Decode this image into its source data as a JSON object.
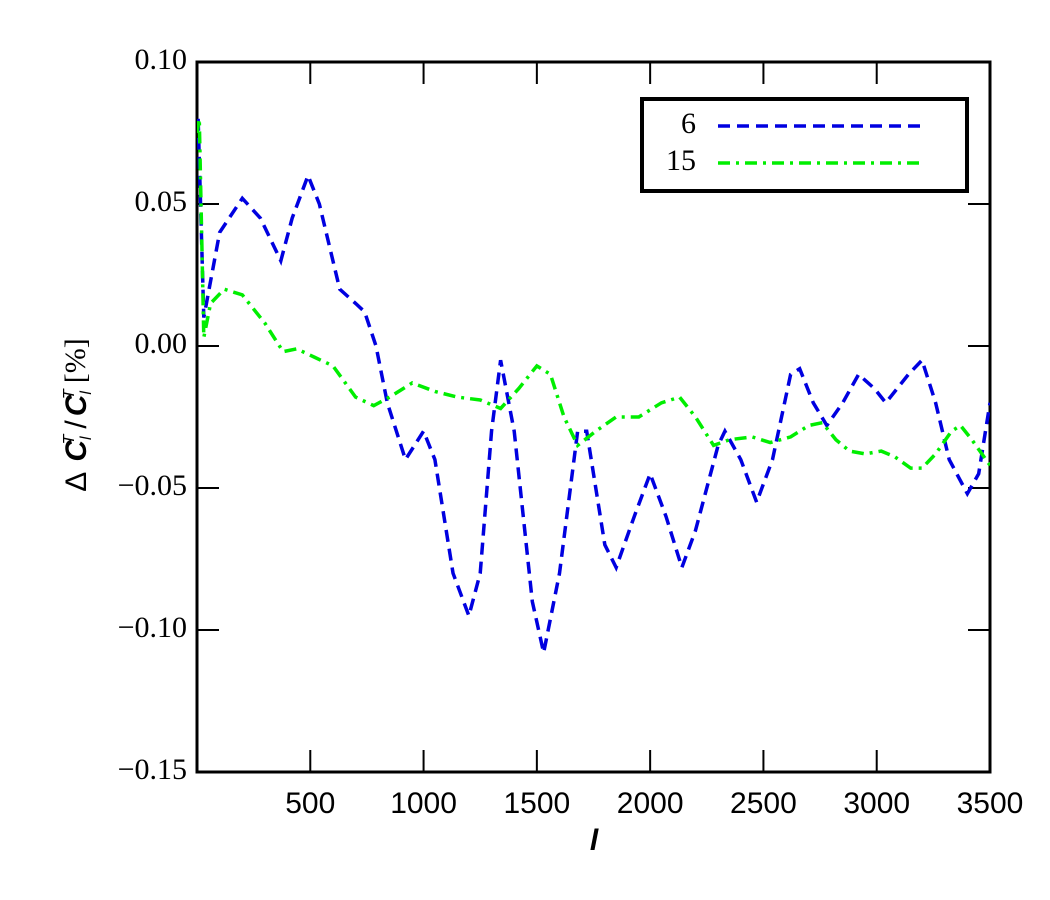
{
  "chart_data": {
    "type": "line",
    "xlabel": "l",
    "ylabel_parts": [
      "Δ",
      "C",
      "l",
      "T",
      "/",
      "C",
      "l",
      "T",
      "[%]"
    ],
    "xlim": [
      0,
      3500
    ],
    "ylim": [
      -0.15,
      0.1
    ],
    "xticks": [
      500,
      1000,
      1500,
      2000,
      2500,
      3000,
      3500
    ],
    "yticks": [
      {
        "value": -0.15,
        "label": "−0.15"
      },
      {
        "value": -0.1,
        "label": "−0.10"
      },
      {
        "value": -0.05,
        "label": "−0.05"
      },
      {
        "value": 0,
        "label": "0.00"
      },
      {
        "value": 0.05,
        "label": "0.05"
      },
      {
        "value": 0.1,
        "label": "0.10"
      }
    ],
    "legend": "upper right",
    "series": [
      {
        "name": "6",
        "color": "#0000e0",
        "dash": "dashed",
        "x": [
          5,
          30,
          100,
          200,
          280,
          370,
          420,
          490,
          540,
          630,
          700,
          740,
          790,
          840,
          920,
          1000,
          1050,
          1130,
          1200,
          1250,
          1300,
          1340,
          1400,
          1480,
          1530,
          1600,
          1680,
          1720,
          1800,
          1850,
          1930,
          2000,
          2070,
          2140,
          2200,
          2300,
          2330,
          2400,
          2470,
          2540,
          2620,
          2660,
          2720,
          2780,
          2850,
          2920,
          2990,
          3040,
          3140,
          3200,
          3260,
          3320,
          3400,
          3450,
          3500
        ],
        "values": [
          0.08,
          0.01,
          0.04,
          0.052,
          0.045,
          0.03,
          0.045,
          0.06,
          0.05,
          0.02,
          0.015,
          0.012,
          0.0,
          -0.02,
          -0.04,
          -0.03,
          -0.04,
          -0.08,
          -0.095,
          -0.08,
          -0.03,
          -0.005,
          -0.03,
          -0.09,
          -0.108,
          -0.08,
          -0.03,
          -0.03,
          -0.07,
          -0.078,
          -0.06,
          -0.045,
          -0.06,
          -0.078,
          -0.065,
          -0.035,
          -0.03,
          -0.04,
          -0.055,
          -0.04,
          -0.01,
          -0.008,
          -0.02,
          -0.028,
          -0.02,
          -0.01,
          -0.015,
          -0.02,
          -0.01,
          -0.005,
          -0.02,
          -0.04,
          -0.052,
          -0.045,
          -0.02
        ]
      },
      {
        "name": "15",
        "color": "#00ee00",
        "dash": "dashdot",
        "x": [
          0,
          10,
          30,
          60,
          120,
          200,
          300,
          380,
          440,
          520,
          600,
          700,
          780,
          850,
          950,
          1050,
          1150,
          1250,
          1340,
          1420,
          1500,
          1560,
          1620,
          1680,
          1760,
          1850,
          1950,
          2050,
          2130,
          2200,
          2280,
          2350,
          2450,
          2530,
          2620,
          2700,
          2760,
          2820,
          2880,
          2950,
          3020,
          3080,
          3150,
          3200,
          3260,
          3330,
          3370,
          3420,
          3500
        ],
        "values": [
          0.075,
          0.08,
          0.003,
          0.015,
          0.02,
          0.018,
          0.008,
          -0.002,
          -0.001,
          -0.004,
          -0.007,
          -0.018,
          -0.021,
          -0.018,
          -0.013,
          -0.016,
          -0.018,
          -0.019,
          -0.022,
          -0.015,
          -0.007,
          -0.01,
          -0.025,
          -0.035,
          -0.03,
          -0.025,
          -0.025,
          -0.02,
          -0.018,
          -0.025,
          -0.035,
          -0.033,
          -0.032,
          -0.034,
          -0.032,
          -0.028,
          -0.027,
          -0.033,
          -0.037,
          -0.038,
          -0.037,
          -0.039,
          -0.043,
          -0.043,
          -0.038,
          -0.03,
          -0.028,
          -0.033,
          -0.042
        ]
      }
    ]
  }
}
